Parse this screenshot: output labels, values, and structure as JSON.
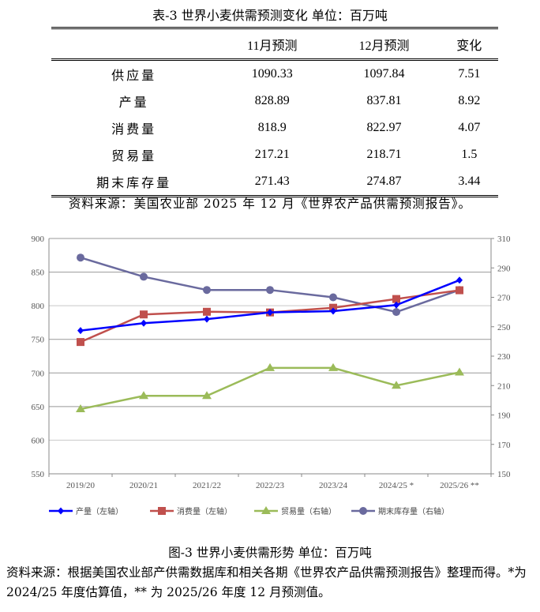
{
  "table": {
    "title": "表-3 世界小麦供需预测变化    单位：百万吨",
    "headers": [
      "",
      "11月预测",
      "12月预测",
      "变化"
    ],
    "rows": [
      {
        "label": "供应量",
        "nov": "1090.33",
        "dec": "1097.84",
        "change": "7.51"
      },
      {
        "label": "产量",
        "nov": "828.89",
        "dec": "837.81",
        "change": "8.92"
      },
      {
        "label": "消费量",
        "nov": "818.9",
        "dec": "822.97",
        "change": "4.07"
      },
      {
        "label": "贸易量",
        "nov": "217.21",
        "dec": "218.71",
        "change": "1.5"
      },
      {
        "label": "期末库存量",
        "nov": "271.43",
        "dec": "274.87",
        "change": "3.44"
      }
    ],
    "source": "资料来源：美国农业部 2025 年 12 月《世界农产品供需预测报告》。"
  },
  "chart_data": {
    "type": "line",
    "categories": [
      "2019/20",
      "2020/21",
      "2021/22",
      "2022/23",
      "2023/24",
      "2024/25 *",
      "2025/26 **"
    ],
    "left_axis": {
      "min": 550,
      "max": 900,
      "ticks": [
        550,
        600,
        650,
        700,
        750,
        800,
        850,
        900
      ]
    },
    "right_axis": {
      "min": 150,
      "max": 310,
      "ticks": [
        150,
        170,
        190,
        210,
        230,
        250,
        270,
        290,
        310
      ]
    },
    "grid": true,
    "legend_position": "bottom",
    "series": [
      {
        "name": "产量（左轴）",
        "axis": "left",
        "color": "#0000FF",
        "marker": "diamond",
        "values": [
          763,
          774,
          780,
          790,
          792,
          801,
          838
        ]
      },
      {
        "name": "消费量（左轴）",
        "axis": "left",
        "color": "#C0504D",
        "marker": "square",
        "values": [
          746,
          787,
          791,
          790,
          797,
          810,
          823
        ]
      },
      {
        "name": "贸易量（右轴）",
        "axis": "right",
        "color": "#9BBB59",
        "marker": "triangle",
        "values": [
          194,
          203,
          203,
          222,
          222,
          210,
          219
        ]
      },
      {
        "name": "期末库存量（右轴）",
        "axis": "right",
        "color": "#6A6A9E",
        "marker": "circle",
        "values": [
          297,
          284,
          275,
          275,
          270,
          260,
          275
        ]
      }
    ]
  },
  "figure": {
    "title": "图-3 世界小麦供需形势    单位：百万吨",
    "source": "资料来源：根据美国农业部产供需数据库和相关各期《世界农产品供需预测报告》整理而得。*为 2024/25 年度估算值，** 为 2025/26 年度 12 月预测值。"
  }
}
